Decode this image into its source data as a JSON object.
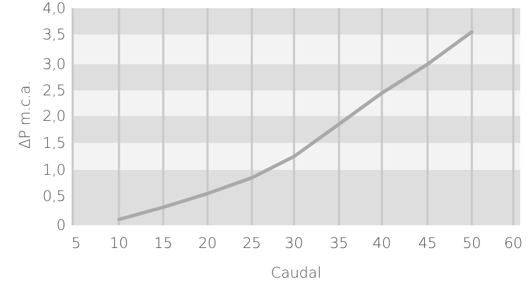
{
  "chart_data": {
    "type": "line",
    "xlabel": "Caudal",
    "ylabel": "ΔP m.c.a.",
    "xlim": [
      5,
      60
    ],
    "ylim": [
      0,
      4.0
    ],
    "x_ticks": [
      "5",
      "10",
      "15",
      "20",
      "25",
      "30",
      "35",
      "40",
      "45",
      "50",
      "60"
    ],
    "y_ticks": [
      "0",
      "0,5",
      "1,0",
      "1,5",
      "2,0",
      "2,5",
      "3,0",
      "3,5",
      "4,0"
    ],
    "grid": true,
    "series": [
      {
        "x": [
          10,
          15,
          20,
          25,
          30,
          35,
          40,
          45,
          50
        ],
        "y": [
          0.1,
          0.31,
          0.55,
          0.85,
          1.25,
          1.85,
          2.45,
          3.0,
          3.55
        ],
        "color": "#a9a9a9"
      }
    ],
    "colors": {
      "band_dark": "#dedede",
      "band_light": "#f3f3f3",
      "gridline": "#c8c8c8",
      "text": "#4a4a4a"
    }
  }
}
